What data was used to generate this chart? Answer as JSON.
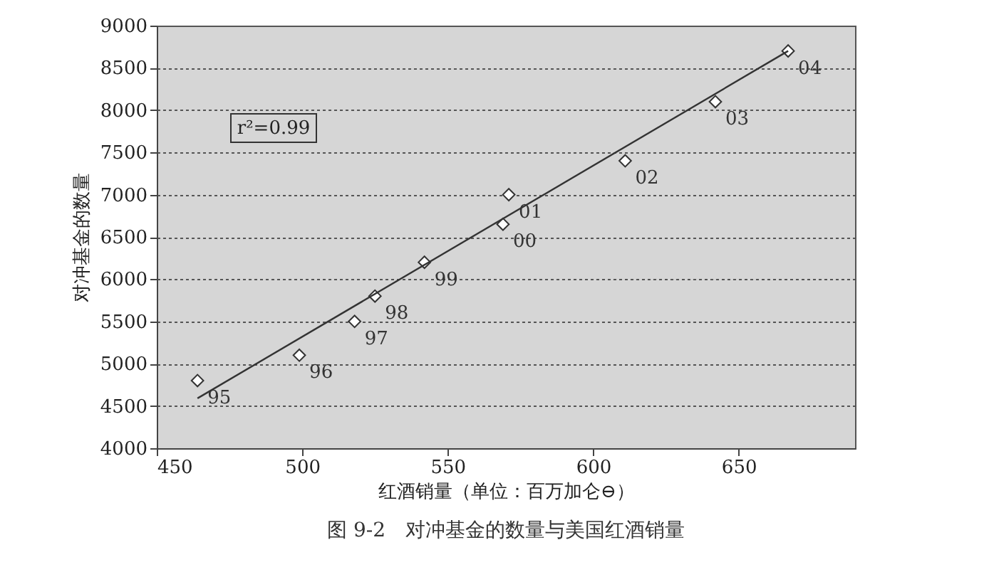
{
  "chart_data": {
    "type": "scatter",
    "title": "图 9-2　对冲基金的数量与美国红酒销量",
    "xlabel": "红酒销量（单位：百万加仑⊖）",
    "ylabel": "对冲基金的数量",
    "xlim": [
      450,
      690
    ],
    "xticks": [
      450,
      500,
      550,
      600,
      650
    ],
    "ylim": [
      4000,
      9000
    ],
    "yticks": [
      4000,
      4500,
      5000,
      5500,
      6000,
      6500,
      7000,
      7500,
      8000,
      8500,
      9000
    ],
    "grid": "y",
    "marker": "diamond",
    "series": [
      {
        "type": "scatter",
        "color": "#ffffff",
        "x": [
          464,
          499,
          518,
          525,
          542,
          569,
          571,
          611,
          642,
          667
        ],
        "values": [
          4800,
          5100,
          5500,
          5800,
          6200,
          6650,
          7000,
          7400,
          8100,
          8700
        ]
      },
      {
        "type": "line",
        "marker": "none",
        "color": "#333333",
        "x": [
          464,
          667
        ],
        "values": [
          4590,
          8700
        ]
      }
    ],
    "annotations": [
      "r²=0.99",
      {
        "text": "95",
        "x": 464,
        "y": 4800
      },
      {
        "text": "96",
        "x": 499,
        "y": 5100
      },
      {
        "text": "97",
        "x": 518,
        "y": 5500
      },
      {
        "text": "98",
        "x": 525,
        "y": 5800
      },
      {
        "text": "99",
        "x": 542,
        "y": 6200
      },
      {
        "text": "00",
        "x": 569,
        "y": 6650
      },
      {
        "text": "01",
        "x": 571,
        "y": 7000
      },
      {
        "text": "02",
        "x": 611,
        "y": 7400
      },
      {
        "text": "03",
        "x": 642,
        "y": 8100
      },
      {
        "text": "04",
        "x": 667,
        "y": 8700
      }
    ]
  }
}
